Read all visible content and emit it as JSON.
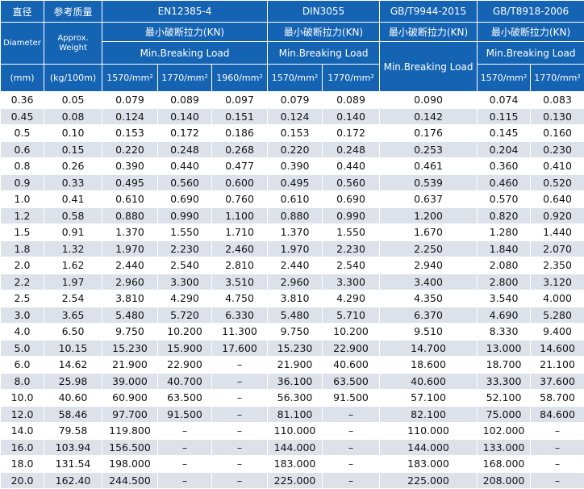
{
  "header": {
    "col_diameter_cn": "直径",
    "col_weight_cn": "参考质量",
    "col_diameter_en": "Diameter",
    "col_weight_en": "Approx. Weight",
    "col_diameter_unit": "(mm)",
    "col_weight_unit": "(kg/100m)",
    "standards": [
      {
        "name": "EN12385-4",
        "cn_label": "最小破断拉力(KN)",
        "en_label": "Min.Breaking Load",
        "grades": [
          "1570/mm²",
          "1770/mm²",
          "1960/mm²"
        ]
      },
      {
        "name": "DIN3055",
        "cn_label": "最小破断拉力(KN)",
        "en_label": "Min.Breaking Load",
        "grades": [
          "1570/mm²",
          "1770/mm²"
        ]
      },
      {
        "name": "GB/T9944-2015",
        "cn_label": "最小破断拉力(KN)",
        "en_label": "Min.Breaking Load",
        "grades": []
      },
      {
        "name": "GB/T8918-2006",
        "cn_label": "最小破断拉力(KN)",
        "en_label": "Min.Breaking Load",
        "grades": [
          "1570/mm²",
          "1770/mm²"
        ]
      }
    ]
  },
  "rows": [
    [
      "0.36",
      "0.05",
      "0.079",
      "0.089",
      "0.097",
      "0.079",
      "0.089",
      "0.090",
      "0.074",
      "0.083"
    ],
    [
      "0.45",
      "0.08",
      "0.124",
      "0.140",
      "0.151",
      "0.124",
      "0.140",
      "0.142",
      "0.115",
      "0.130"
    ],
    [
      "0.5",
      "0.10",
      "0.153",
      "0.172",
      "0.186",
      "0.153",
      "0.172",
      "0.176",
      "0.145",
      "0.160"
    ],
    [
      "0.6",
      "0.15",
      "0.220",
      "0.248",
      "0.268",
      "0.220",
      "0.248",
      "0.253",
      "0.204",
      "0.230"
    ],
    [
      "0.8",
      "0.26",
      "0.390",
      "0.440",
      "0.477",
      "0.390",
      "0.440",
      "0.461",
      "0.360",
      "0.410"
    ],
    [
      "0.9",
      "0.33",
      "0.495",
      "0.560",
      "0.600",
      "0.495",
      "0.560",
      "0.539",
      "0.460",
      "0.520"
    ],
    [
      "1.0",
      "0.41",
      "0.610",
      "0.690",
      "0.760",
      "0.610",
      "0.690",
      "0.637",
      "0.570",
      "0.640"
    ],
    [
      "1.2",
      "0.58",
      "0.880",
      "0.990",
      "1.100",
      "0.880",
      "0.990",
      "1.200",
      "0.820",
      "0.920"
    ],
    [
      "1.5",
      "0.91",
      "1.370",
      "1.550",
      "1.710",
      "1.370",
      "1.550",
      "1.670",
      "1.280",
      "1.440"
    ],
    [
      "1.8",
      "1.32",
      "1.970",
      "2.230",
      "2.460",
      "1.970",
      "2.230",
      "2.250",
      "1.840",
      "2.070"
    ],
    [
      "2.0",
      "1.62",
      "2.440",
      "2.540",
      "2.810",
      "2.440",
      "2.540",
      "2.940",
      "2.080",
      "2.350"
    ],
    [
      "2.2",
      "1.97",
      "2.960",
      "3.300",
      "3.510",
      "2.960",
      "3.300",
      "3.400",
      "2.800",
      "3.120"
    ],
    [
      "2.5",
      "2.54",
      "3.810",
      "4.290",
      "4.750",
      "3.810",
      "4.290",
      "4.350",
      "3.540",
      "4.000"
    ],
    [
      "3.0",
      "3.65",
      "5.480",
      "5.720",
      "6.330",
      "5.480",
      "5.710",
      "6.370",
      "4.690",
      "5.280"
    ],
    [
      "4.0",
      "6.50",
      "9.750",
      "10.200",
      "11.300",
      "9.750",
      "10.200",
      "9.510",
      "8.330",
      "9.400"
    ],
    [
      "5.0",
      "10.15",
      "15.230",
      "15.900",
      "17.600",
      "15.230",
      "22.900",
      "14.700",
      "13.000",
      "14.600"
    ],
    [
      "6.0",
      "14.62",
      "21.900",
      "22.900",
      "–",
      "21.900",
      "40.600",
      "18.600",
      "18.700",
      "21.100"
    ],
    [
      "8.0",
      "25.98",
      "39.000",
      "40.700",
      "–",
      "36.100",
      "63.500",
      "40.600",
      "33.300",
      "37.600"
    ],
    [
      "10.0",
      "40.60",
      "60.900",
      "63.500",
      "–",
      "56.300",
      "91.500",
      "57.100",
      "52.100",
      "58.700"
    ],
    [
      "12.0",
      "58.46",
      "97.700",
      "91.500",
      "–",
      "81.100",
      "–",
      "82.100",
      "75.000",
      "84.600"
    ],
    [
      "14.0",
      "79.58",
      "119.800",
      "–",
      "–",
      "110.000",
      "–",
      "110.000",
      "102.000",
      "–"
    ],
    [
      "16.0",
      "103.94",
      "156.500",
      "–",
      "–",
      "144.000",
      "–",
      "144.000",
      "133.000",
      "–"
    ],
    [
      "18.0",
      "131.54",
      "198.000",
      "–",
      "–",
      "183.000",
      "–",
      "183.000",
      "168.000",
      "–"
    ],
    [
      "20.0",
      "162.40",
      "244.500",
      "–",
      "–",
      "225.000",
      "–",
      "225.000",
      "208.000",
      "–"
    ]
  ]
}
